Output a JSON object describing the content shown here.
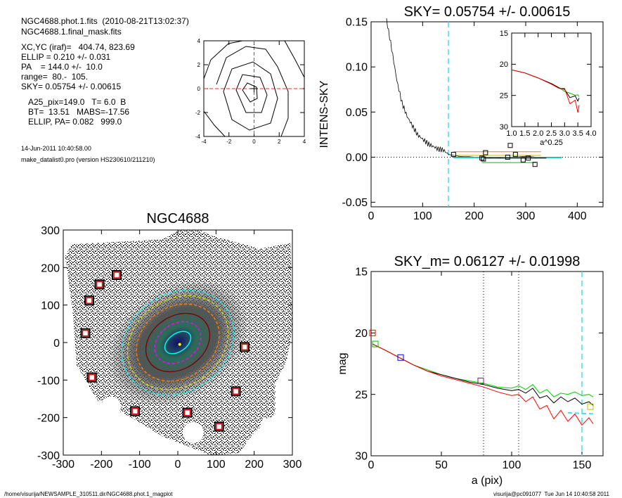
{
  "info": {
    "line1": "NGC4688.phot.1.fits  (2010-08-21T13:02:37)",
    "line2": "NGC4688.1.final_mask.fits",
    "line3": "XC,YC (iraf)=   404.74, 823.69",
    "line4": "ELLIP = 0.210 +/- 0.031",
    "line5": "PA    = 144.0 +/-  10.0",
    "line6": "range=  80.-  105.",
    "line7": "SKY= 0.05754 +/- 0.00615",
    "line8": "A25_pix=149.0   T= 6.0  B",
    "line9": "BT=  13.51   MABS=-17.56",
    "line10": "ELLIP, PA= 0.082   999.0",
    "date": "14-Jun-2011 10:40:58.00",
    "program": "make_datalist0.pro (version HS230610/211210)"
  },
  "footer": {
    "path": "/home/visurija/NEWSAMPLE_310511.dir/NGC4688.phot.1_magplot",
    "user": "visurija@pc091077  Tue Jun 14 10:40:58 2011"
  },
  "chart_data": [
    {
      "id": "contour",
      "type": "line",
      "title": "",
      "xlim": [
        -4,
        4
      ],
      "ylim": [
        -4,
        4
      ],
      "xticks": [
        "-4",
        "-2",
        "0",
        "2",
        "4"
      ],
      "yticks": [
        "-4",
        "-2",
        "0",
        "2",
        "4"
      ]
    },
    {
      "id": "sky",
      "type": "line",
      "title": "SKY= 0.05754 +/- 0.00615",
      "ylabel": "INTENS-SKY",
      "xlim": [
        0,
        450
      ],
      "ylim": [
        -0.055,
        0.15
      ],
      "xticks": [
        "0",
        "100",
        "200",
        "300",
        "400"
      ],
      "yticks": [
        "-0.05",
        "0.00",
        "0.05",
        "0.10",
        "0.15"
      ],
      "vline_x": 150,
      "profile": {
        "x": [
          30,
          40,
          50,
          60,
          70,
          80,
          90,
          100,
          110,
          120,
          130,
          140,
          150,
          160,
          170,
          180,
          190,
          200,
          220,
          240,
          260,
          280,
          300,
          320,
          340,
          360
        ],
        "y": [
          0.152,
          0.12,
          0.085,
          0.06,
          0.045,
          0.035,
          0.025,
          0.02,
          0.015,
          0.012,
          0.009,
          0.008,
          0.003,
          0.002,
          0.001,
          0.0005,
          0.0005,
          0.0,
          0.0,
          -0.001,
          0.0,
          0.0,
          0.001,
          0.0,
          0.0,
          0.0
        ]
      },
      "squares": {
        "x": [
          160,
          215,
          218,
          222,
          265,
          270,
          280,
          295,
          305,
          318
        ],
        "y": [
          0.003,
          -0.001,
          -0.002,
          0.005,
          0.0,
          0.013,
          0.003,
          -0.003,
          -0.001,
          -0.008
        ]
      }
    },
    {
      "id": "inset",
      "type": "line",
      "xlabel": "a^0.25",
      "xlim": [
        1.0,
        4.0
      ],
      "ylim": [
        15,
        30
      ],
      "xticks": [
        "1.0",
        "1.5",
        "2.0",
        "2.5",
        "3.0",
        "3.5",
        "4.0"
      ],
      "yticks": [
        "15",
        "20",
        "25",
        "30"
      ],
      "x": [
        1.0,
        1.5,
        2.0,
        2.5,
        2.8,
        3.0,
        3.2,
        3.4,
        3.5,
        3.55
      ],
      "series": [
        {
          "color": "#00c000",
          "values": [
            20.9,
            21.4,
            22.2,
            23.1,
            23.8,
            24.3,
            24.7,
            24.9,
            25.0,
            25.1
          ]
        },
        {
          "color": "#000000",
          "values": [
            20.9,
            21.4,
            22.2,
            23.1,
            23.8,
            24.4,
            25.0,
            25.4,
            25.6,
            25.7
          ]
        },
        {
          "color": "#ff0000",
          "values": [
            20.9,
            21.4,
            22.2,
            23.2,
            23.9,
            24.6,
            25.6,
            26.5,
            27.0,
            27.3
          ]
        }
      ]
    },
    {
      "id": "image",
      "type": "scatter",
      "title": "NGC4688",
      "xlim": [
        -300,
        300
      ],
      "ylim": [
        -300,
        300
      ],
      "xticks": [
        "-300",
        "-200",
        "-100",
        "0",
        "100",
        "200",
        "300"
      ],
      "yticks": [
        "-300",
        "-200",
        "-100",
        "0",
        "100",
        "200",
        "300"
      ],
      "masks": {
        "x": [
          -160,
          -205,
          -232,
          -242,
          -225,
          175,
          -112,
          25,
          152,
          108
        ],
        "y": [
          180,
          155,
          112,
          25,
          -93,
          -12,
          -183,
          -187,
          -130,
          -224
        ]
      },
      "ellipses": [
        {
          "color": "#00ffff",
          "a": 155,
          "b": 130,
          "dashed": true
        },
        {
          "color": "#e0e000",
          "a": 140,
          "b": 115,
          "dashed": true
        },
        {
          "color": "#ff8000",
          "a": 115,
          "b": 95,
          "dashed": true
        },
        {
          "color": "#800000",
          "a": 90,
          "b": 70,
          "dashed": false
        },
        {
          "color": "#ff00ff",
          "a": 65,
          "b": 50,
          "dashed": true
        },
        {
          "color": "#00ffff",
          "a": 38,
          "b": 24,
          "dashed": false
        }
      ]
    },
    {
      "id": "mag",
      "type": "line",
      "title": "SKY_m=  0.06127 +/- 0.01998",
      "xlabel": "a (pix)",
      "ylabel": "mag",
      "xlim": [
        0,
        165
      ],
      "ylim": [
        15,
        30
      ],
      "xticks": [
        "0",
        "50",
        "100",
        "150"
      ],
      "yticks": [
        "15",
        "20",
        "25",
        "30"
      ],
      "range_lines": [
        80,
        105
      ],
      "vline_x": 150,
      "x": [
        1,
        10,
        20,
        30,
        40,
        50,
        60,
        70,
        80,
        90,
        100,
        105,
        110,
        115,
        120,
        125,
        130,
        135,
        140,
        145,
        150,
        155,
        158
      ],
      "series": [
        {
          "color": "#00d000",
          "values": [
            20.9,
            21.4,
            22.0,
            22.6,
            23.0,
            23.4,
            23.7,
            23.9,
            24.1,
            24.4,
            24.5,
            24.3,
            24.6,
            24.2,
            24.9,
            24.6,
            25.2,
            24.9,
            25.0,
            24.8,
            25.1,
            25.0,
            25.2
          ]
        },
        {
          "color": "#000000",
          "values": [
            20.9,
            21.4,
            22.0,
            22.6,
            23.1,
            23.4,
            23.7,
            24.0,
            24.2,
            24.5,
            24.7,
            24.6,
            24.9,
            24.5,
            25.3,
            25.1,
            25.7,
            25.2,
            25.6,
            25.3,
            25.8,
            25.6,
            25.9
          ]
        },
        {
          "color": "#ff0000",
          "values": [
            20.9,
            21.4,
            22.0,
            22.6,
            23.1,
            23.5,
            23.8,
            24.1,
            24.4,
            24.8,
            25.1,
            25.0,
            25.6,
            25.2,
            26.2,
            25.9,
            27.0,
            26.3,
            27.2,
            26.6,
            27.5,
            26.9,
            27.4
          ]
        }
      ],
      "squares": [
        {
          "x": 1,
          "y": 20.0,
          "color": "#ff0000"
        },
        {
          "x": 3,
          "y": 20.9,
          "color": "#00c000"
        },
        {
          "x": 21,
          "y": 22.0,
          "color": "#0000ff"
        },
        {
          "x": 78,
          "y": 23.9,
          "color": "#a000a0"
        },
        {
          "x": 156,
          "y": 26.0,
          "color": "#c0c000"
        }
      ],
      "sky_dash": {
        "x": [
          140,
          160
        ],
        "y": [
          26.5,
          26.6
        ]
      }
    }
  ]
}
